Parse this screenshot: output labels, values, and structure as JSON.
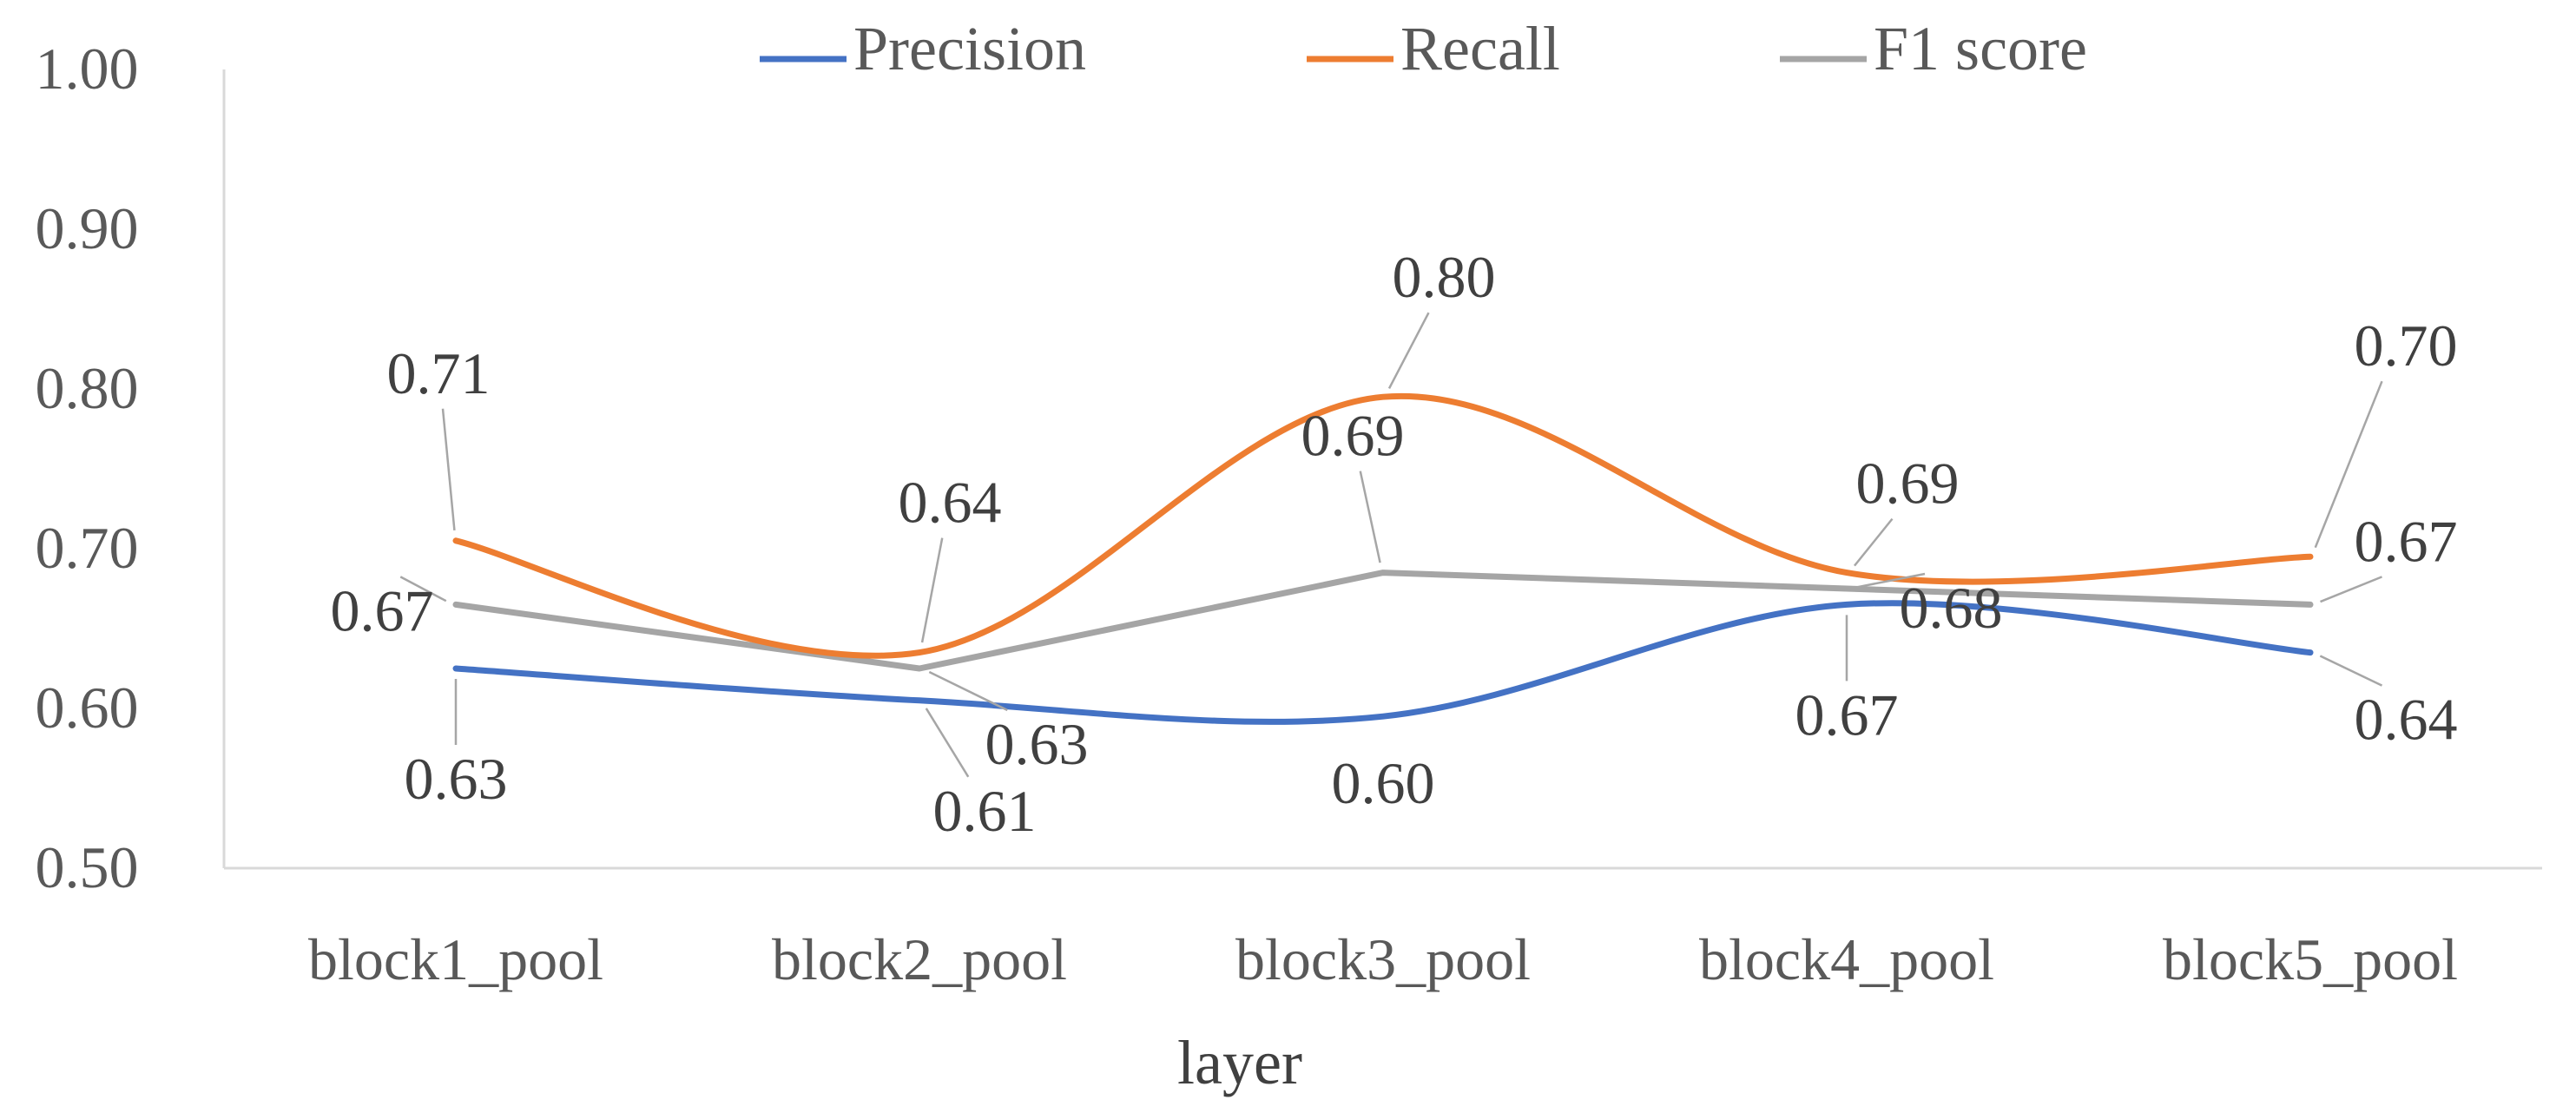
{
  "chart_data": {
    "type": "line",
    "title": "",
    "xlabel": "layer",
    "ylabel": "",
    "ylim": [
      0.5,
      1.0
    ],
    "yticks": [
      "0.50",
      "0.60",
      "0.70",
      "0.80",
      "0.90",
      "1.00"
    ],
    "categories": [
      "block1_pool",
      "block2_pool",
      "block3_pool",
      "block4_pool",
      "block5_pool"
    ],
    "legend_position": "top",
    "series": [
      {
        "name": "Precision",
        "color": "#4472C4",
        "smooth": true,
        "values": [
          0.625,
          0.605,
          0.595,
          0.665,
          0.635
        ],
        "labels": [
          "0.63",
          "0.61",
          "0.60",
          "0.67",
          "0.64"
        ]
      },
      {
        "name": "Recall",
        "color": "#ED7D31",
        "smooth": true,
        "values": [
          0.705,
          0.635,
          0.795,
          0.685,
          0.695
        ],
        "labels": [
          "0.71",
          "0.64",
          "0.80",
          "0.69",
          "0.70"
        ]
      },
      {
        "name": "F1 score",
        "color": "#A5A5A5",
        "smooth": false,
        "values": [
          0.665,
          0.625,
          0.685,
          0.675,
          0.665
        ],
        "labels": [
          "0.67",
          "0.63",
          "0.69",
          "0.68",
          "0.67"
        ]
      }
    ]
  }
}
